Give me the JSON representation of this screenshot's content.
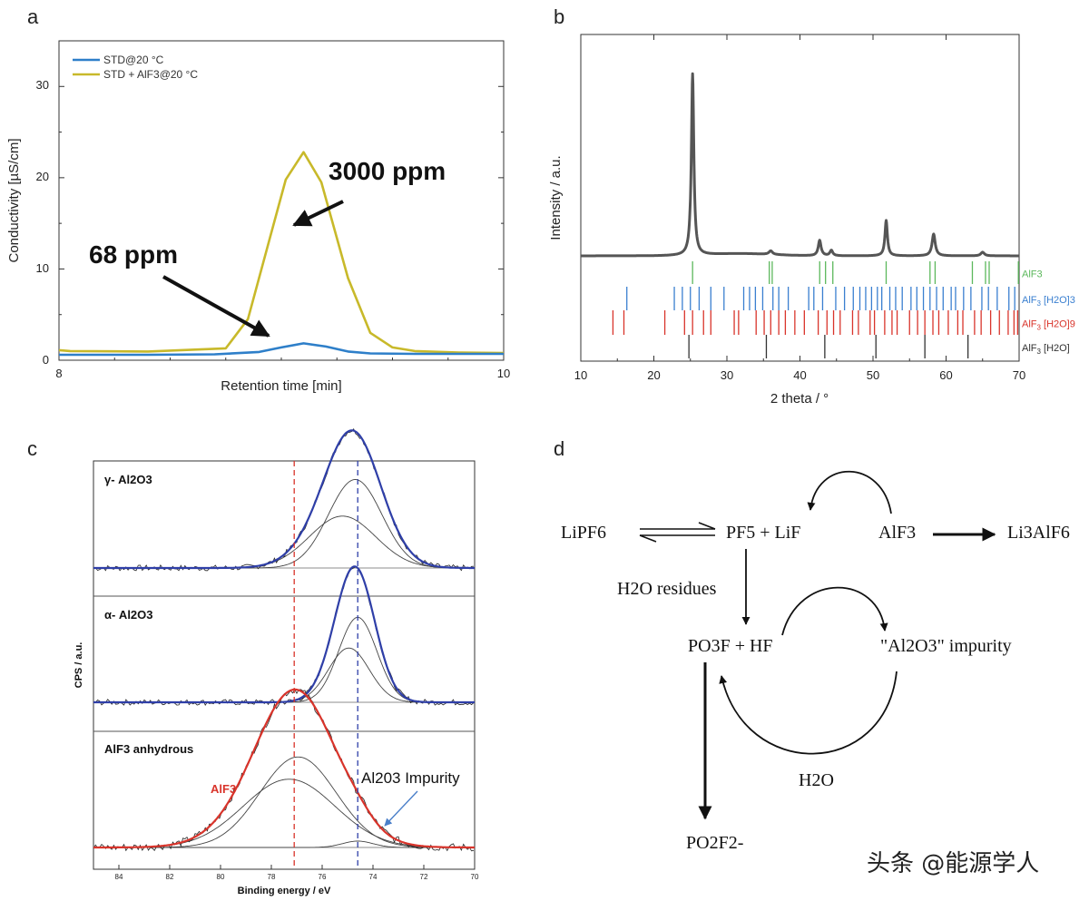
{
  "panel_labels": {
    "a": "a",
    "b": "b",
    "c": "c",
    "d": "d"
  },
  "watermark": "头条 @能源学人",
  "chart_data": [
    {
      "id": "a",
      "type": "line",
      "xlabel": "Retention time [min]",
      "ylabel": "Conductivity [µS/cm]",
      "xlim": [
        8,
        10
      ],
      "ylim": [
        0,
        35
      ],
      "xticks": [
        "8",
        "10"
      ],
      "yticks": [
        "0",
        "10",
        "20",
        "30"
      ],
      "legend_position": "top-left",
      "series": [
        {
          "name": "STD@20 °C",
          "color": "#2e7fc9",
          "x": [
            8.0,
            8.4,
            8.7,
            8.9,
            9.0,
            9.1,
            9.2,
            9.3,
            9.4,
            9.6,
            9.8,
            10.0
          ],
          "y": [
            0.6,
            0.6,
            0.65,
            0.9,
            1.4,
            1.85,
            1.5,
            0.95,
            0.75,
            0.7,
            0.7,
            0.7
          ]
        },
        {
          "name": "STD + AlF3@20 °C",
          "color": "#c8b92a",
          "x": [
            8.0,
            8.05,
            8.4,
            8.75,
            8.85,
            8.95,
            9.02,
            9.1,
            9.18,
            9.3,
            9.4,
            9.5,
            9.6,
            9.8,
            10.0
          ],
          "y": [
            1.1,
            1.0,
            0.95,
            1.3,
            4.5,
            13.5,
            19.8,
            22.8,
            19.5,
            9.0,
            3.0,
            1.4,
            1.0,
            0.85,
            0.8
          ]
        }
      ],
      "annotations": [
        {
          "text": "3000 ppm",
          "target": "STD + AlF3@20 °C peak"
        },
        {
          "text": "68 ppm",
          "target": "STD@20 °C peak"
        }
      ]
    },
    {
      "id": "b",
      "type": "line",
      "xlabel": "2 theta / °",
      "ylabel": "Intensity / a.u.",
      "xlim": [
        10,
        70
      ],
      "xticks": [
        "10",
        "20",
        "30",
        "40",
        "50",
        "60",
        "70"
      ],
      "series": [
        {
          "name": "measured pattern",
          "color": "#555555",
          "peaks": [
            {
              "x": 25.3,
              "height": 1.0,
              "width": 0.35
            },
            {
              "x": 36.0,
              "height": 0.02,
              "width": 0.5
            },
            {
              "x": 42.7,
              "height": 0.085,
              "width": 0.4
            },
            {
              "x": 44.3,
              "height": 0.03,
              "width": 0.4
            },
            {
              "x": 51.8,
              "height": 0.195,
              "width": 0.35
            },
            {
              "x": 58.3,
              "height": 0.12,
              "width": 0.45
            },
            {
              "x": 65.0,
              "height": 0.02,
              "width": 0.5
            }
          ]
        }
      ],
      "references": [
        {
          "name": "AlF3",
          "label_main": "AlF3",
          "label_sub": "",
          "label_tail": "",
          "color": "#5cb85c",
          "positions": [
            25.3,
            35.8,
            36.2,
            42.7,
            43.5,
            44.5,
            51.8,
            57.8,
            58.5,
            63.6,
            65.4,
            65.9,
            69.9
          ]
        },
        {
          "name": "AlF3·3H2O",
          "label_main": "AlF",
          "label_sub": "3",
          "label_tail": " [H2O]3",
          "color": "#3a7fd0",
          "positions": [
            16.3,
            22.8,
            23.9,
            25.0,
            26.2,
            27.8,
            29.6,
            32.3,
            33.1,
            33.9,
            34.9,
            36.3,
            37.1,
            38.4,
            41.2,
            41.9,
            43.1,
            44.9,
            46.1,
            47.3,
            48.2,
            49.0,
            49.8,
            50.6,
            51.2,
            52.3,
            53.1,
            54.0,
            55.2,
            56.0,
            56.9,
            57.8,
            58.7,
            59.6,
            60.7,
            61.3,
            62.4,
            63.4,
            64.9,
            65.8,
            67.0,
            68.6,
            69.4
          ]
        },
        {
          "name": "AlF3·9H2O",
          "label_main": "AlF",
          "label_sub": "3",
          "label_tail": " [H2O]9",
          "color": "#d9342b",
          "positions": [
            14.4,
            15.9,
            21.5,
            24.2,
            25.3,
            26.8,
            27.8,
            31.0,
            31.6,
            34.0,
            35.1,
            36.0,
            37.1,
            38.0,
            39.3,
            40.6,
            42.5,
            43.7,
            44.6,
            45.5,
            47.2,
            48.0,
            49.6,
            50.2,
            51.6,
            52.6,
            53.3,
            55.0,
            56.1,
            57.1,
            58.2,
            59.0,
            60.3,
            61.6,
            62.3,
            63.9,
            64.8,
            66.1,
            67.3,
            68.5,
            69.3,
            69.8
          ]
        },
        {
          "name": "AlF3·H2O",
          "label_main": "AlF",
          "label_sub": "3",
          "label_tail": " [H2O]",
          "color": "#333333",
          "positions": [
            24.8,
            35.4,
            43.4,
            50.4,
            57.1,
            63.0
          ]
        }
      ]
    },
    {
      "id": "c",
      "type": "line",
      "xlabel": "Binding energy / eV",
      "ylabel": "CPS / a.u.",
      "xlim": [
        85,
        70
      ],
      "xticks": [
        "84",
        "82",
        "80",
        "78",
        "76",
        "74",
        "72",
        "70"
      ],
      "reference_lines": [
        {
          "x": 77.1,
          "color": "#d9342b",
          "style": "dashed"
        },
        {
          "x": 74.6,
          "color": "#2f3fa8",
          "style": "dashed"
        }
      ],
      "panels": [
        {
          "label": "γ- Al2O3",
          "envelope_color": "#2f3fa8",
          "components": [
            {
              "center": 74.7,
              "height": 0.75,
              "width": 1.05
            },
            {
              "center": 75.2,
              "height": 0.44,
              "width": 1.3
            }
          ]
        },
        {
          "label": "α- Al2O3",
          "envelope_color": "#2f3fa8",
          "components": [
            {
              "center": 74.6,
              "height": 0.72,
              "width": 0.75
            },
            {
              "center": 74.95,
              "height": 0.46,
              "width": 0.8
            }
          ]
        },
        {
          "label": "AlF3 anhydrous",
          "envelope_color": "#d9342b",
          "components": [
            {
              "center": 76.95,
              "height": 0.57,
              "width": 1.5
            },
            {
              "center": 77.3,
              "height": 0.43,
              "width": 1.8
            },
            {
              "center": 74.6,
              "height": 0.04,
              "width": 0.6
            }
          ],
          "annotations": [
            {
              "text": "AlF3",
              "color": "#d9342b"
            },
            {
              "text": "Al203 Impurity",
              "color": "#111111"
            }
          ]
        }
      ]
    }
  ],
  "diagram": {
    "lipf6": "LiPF6",
    "pf5_lif": "PF5 + LiF",
    "alf3": "AlF3",
    "li3alf6": "Li3AlF6",
    "h2o_residues": "H2O residues",
    "po3f_hf": "PO3F + HF",
    "al2o3_impurity": "\"Al2O3\" impurity",
    "h2o": "H2O",
    "po2f2": "PO2F2-"
  }
}
